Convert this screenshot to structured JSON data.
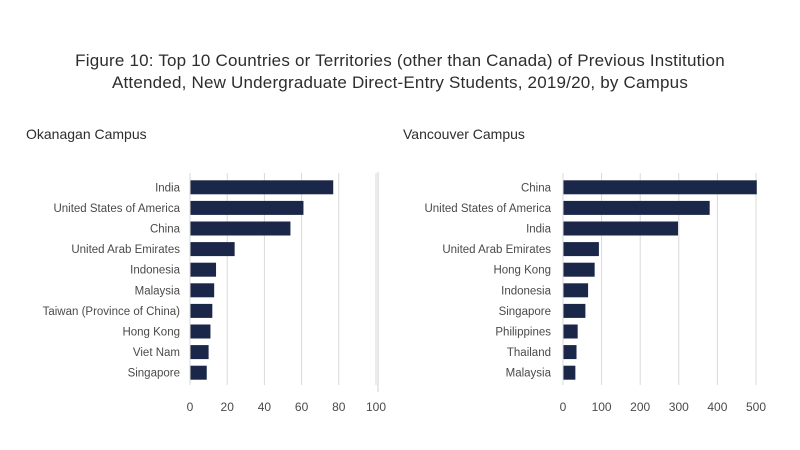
{
  "figure": {
    "title_line1": "Figure 10: Top 10 Countries or Territories (other than Canada) of Previous Institution",
    "title_line2": "Attended, New Undergraduate Direct-Entry Students, 2019/20, by Campus"
  },
  "colors": {
    "bar": "#1b2748",
    "grid": "#d9d9d9",
    "divider": "#d0d0d0"
  },
  "chart_data": [
    {
      "type": "bar",
      "orientation": "horizontal",
      "title": "Okanagan Campus",
      "categories": [
        "India",
        "United States of America",
        "China",
        "United Arab Emirates",
        "Indonesia",
        "Malaysia",
        "Taiwan (Province of China)",
        "Hong Kong",
        "Viet Nam",
        "Singapore"
      ],
      "values": [
        77,
        61,
        54,
        24,
        14,
        13,
        12,
        11,
        10,
        9
      ],
      "xlim": [
        0,
        100
      ],
      "xticks": [
        0,
        20,
        40,
        60,
        80,
        100
      ],
      "grid": true
    },
    {
      "type": "bar",
      "orientation": "horizontal",
      "title": "Vancouver Campus",
      "categories": [
        "China",
        "United States of America",
        "India",
        "United Arab Emirates",
        "Hong Kong",
        "Indonesia",
        "Singapore",
        "Philippines",
        "Thailand",
        "Malaysia"
      ],
      "values": [
        502,
        380,
        298,
        93,
        82,
        65,
        58,
        38,
        35,
        32
      ],
      "xlim": [
        0,
        500
      ],
      "xticks": [
        0,
        100,
        200,
        300,
        400,
        500
      ],
      "grid": true
    }
  ]
}
